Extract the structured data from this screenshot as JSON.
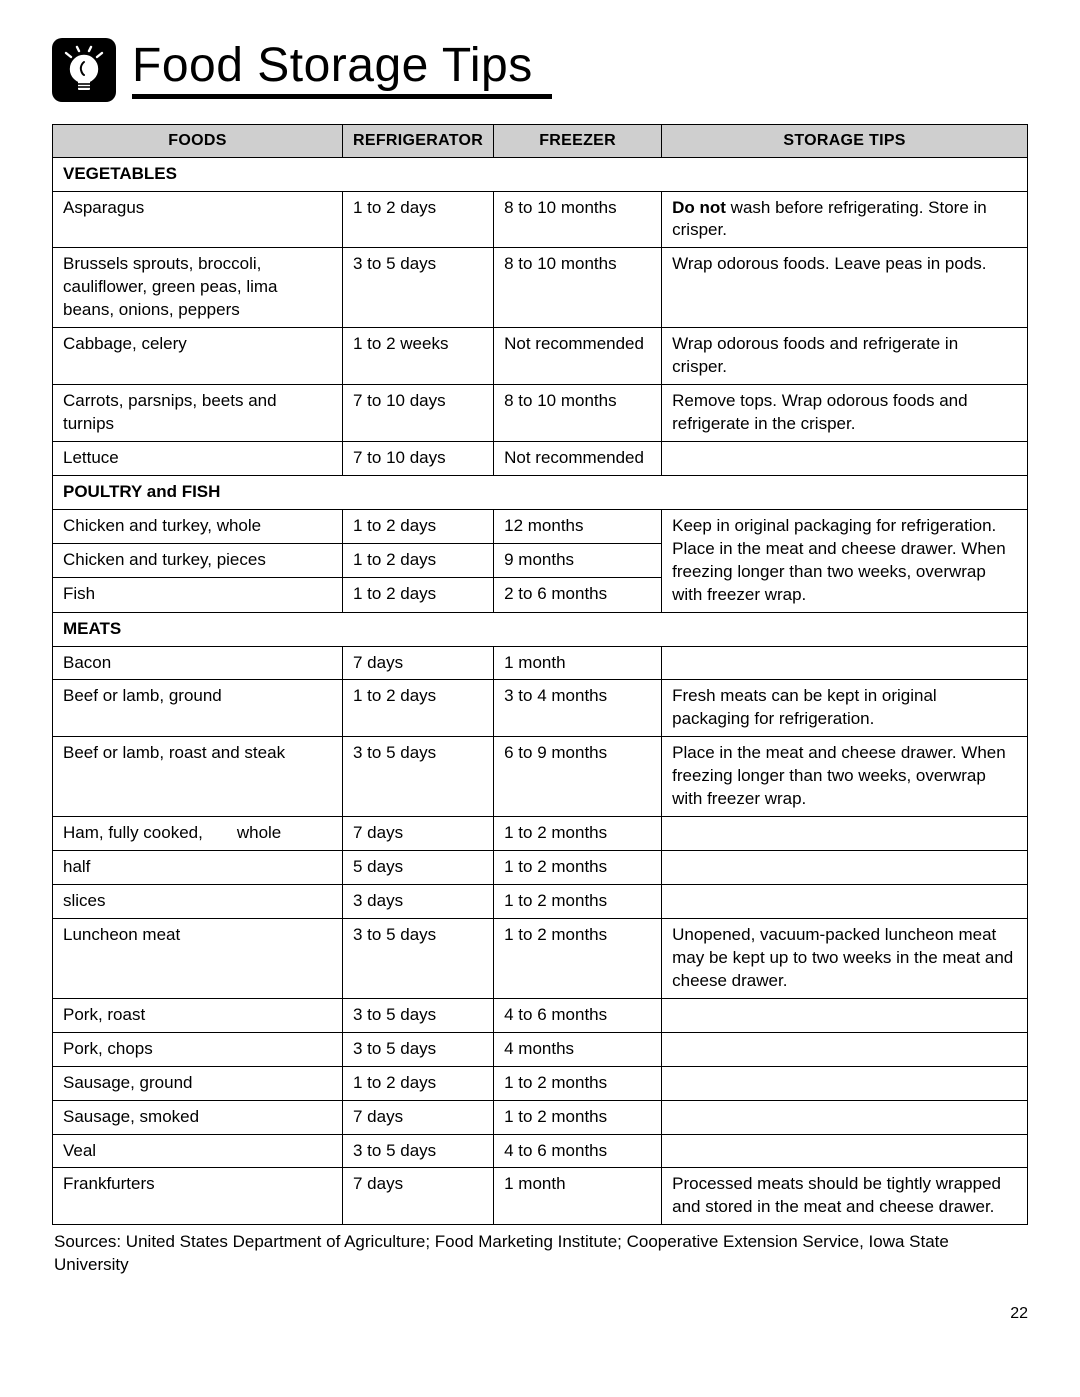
{
  "title": "Food Storage Tips",
  "columns": [
    "FOODS",
    "REFRIGERATOR",
    "FREEZER",
    "STORAGE TIPS"
  ],
  "sections": {
    "veg": "VEGETABLES",
    "poultry": "POULTRY and FISH",
    "meats": "MEATS"
  },
  "veg": [
    {
      "food": "Asparagus",
      "ref": "1 to 2 days",
      "frz": "8 to 10 months",
      "tip_pre": "Do not",
      "tip_post": " wash before refrigerating. Store in crisper."
    },
    {
      "food": "Brussels sprouts, broccoli, cauliflower, green peas, lima beans, onions, peppers",
      "ref": "3 to 5 days",
      "frz": "8 to 10 months",
      "tip": "Wrap odorous foods. Leave peas in pods."
    },
    {
      "food": "Cabbage, celery",
      "ref": "1 to 2 weeks",
      "frz": "Not recommended",
      "tip": "Wrap odorous foods and refrigerate in crisper."
    },
    {
      "food": "Carrots, parsnips, beets and turnips",
      "ref": "7 to 10 days",
      "frz": "8 to 10 months",
      "tip": "Remove tops. Wrap odorous foods and refrigerate in the crisper."
    },
    {
      "food": "Lettuce",
      "ref": "7 to 10 days",
      "frz": "Not recommended",
      "tip": ""
    }
  ],
  "poultry": [
    {
      "food": "Chicken and turkey, whole",
      "ref": "1 to 2 days",
      "frz": "12 months"
    },
    {
      "food": "Chicken and turkey, pieces",
      "ref": "1 to 2 days",
      "frz": "9 months"
    },
    {
      "food": "Fish",
      "ref": "1 to 2 days",
      "frz": "2 to 6 months"
    }
  ],
  "poultry_tip": "Keep in original packaging for refrigeration. Place in the meat and cheese drawer. When freezing longer than two weeks, overwrap with freezer wrap.",
  "meats": [
    {
      "food": "Bacon",
      "ref": "7 days",
      "frz": "1 month",
      "tip": ""
    },
    {
      "food": "Beef or lamb, ground",
      "ref": "1 to 2 days",
      "frz": "3 to 4 months",
      "tip": "Fresh meats can be kept in original packaging for refrigeration."
    },
    {
      "food": "Beef or lamb, roast and steak",
      "ref": "3 to 5 days",
      "frz": "6 to 9 months",
      "tip": "Place in the meat and cheese drawer. When freezing longer than two weeks, overwrap with freezer wrap."
    }
  ],
  "ham": {
    "lead": "Ham, fully cooked,",
    "rows": [
      {
        "label": "whole",
        "ref": "7 days",
        "frz": "1 to 2 months"
      },
      {
        "label": "half",
        "ref": "5 days",
        "frz": "1 to 2 months"
      },
      {
        "label": "slices",
        "ref": "3 days",
        "frz": "1 to 2 months"
      }
    ]
  },
  "meats2": [
    {
      "food": "Luncheon meat",
      "ref": "3 to 5 days",
      "frz": "1 to 2 months",
      "tip": "Unopened, vacuum-packed luncheon meat may be kept up to two weeks in the meat and cheese drawer."
    },
    {
      "food": "Pork, roast",
      "ref": "3 to 5 days",
      "frz": "4 to 6 months",
      "tip": ""
    },
    {
      "food": "Pork, chops",
      "ref": "3 to 5 days",
      "frz": "4 months",
      "tip": ""
    },
    {
      "food": "Sausage, ground",
      "ref": "1 to 2 days",
      "frz": "1 to 2 months",
      "tip": ""
    },
    {
      "food": "Sausage, smoked",
      "ref": "7 days",
      "frz": "1 to 2 months",
      "tip": ""
    },
    {
      "food": "Veal",
      "ref": "3 to 5 days",
      "frz": "4 to 6 months",
      "tip": ""
    },
    {
      "food": "Frankfurters",
      "ref": "7 days",
      "frz": "1 month",
      "tip": "Processed meats should be tightly wrapped and stored in the meat and cheese drawer."
    }
  ],
  "sources": "Sources:  United States Department of Agriculture; Food Marketing Institute; Cooperative Extension Service, Iowa State University",
  "page_number": "22"
}
